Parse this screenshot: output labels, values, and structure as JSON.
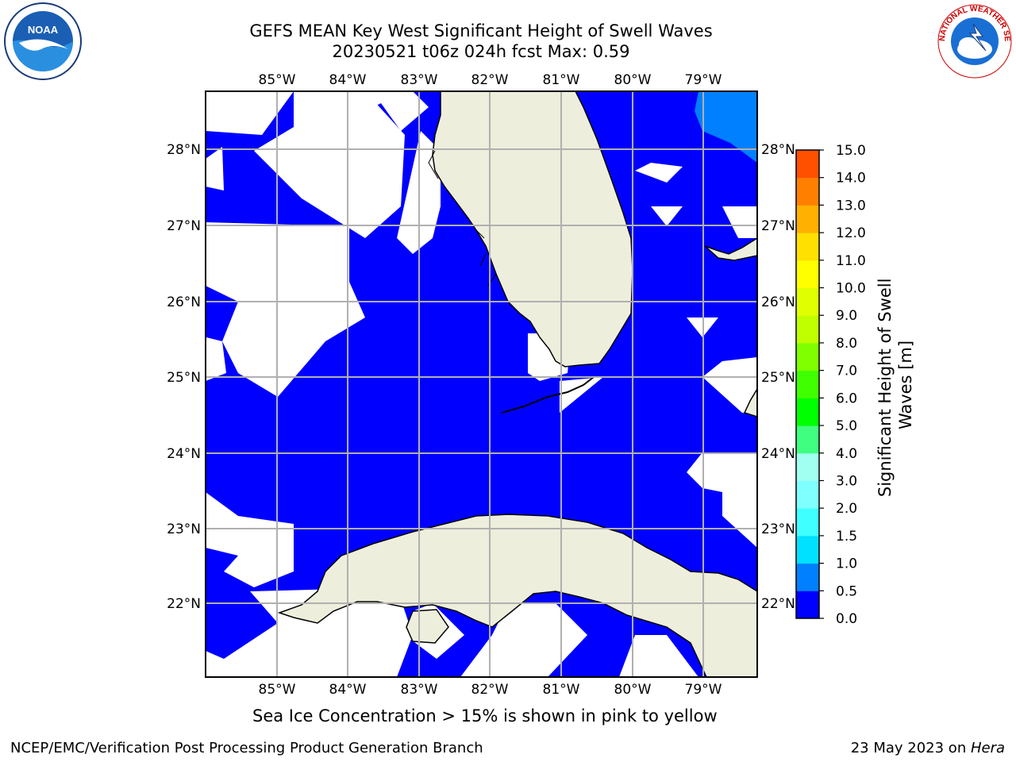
{
  "title_line1": "GEFS MEAN Key West Significant Height of Swell Waves",
  "title_line2": "20230521 t06z 024h fcst   Max: 0.59",
  "map": {
    "lon_labels": [
      "85°W",
      "84°W",
      "83°W",
      "82°W",
      "81°W",
      "80°W",
      "79°W"
    ],
    "lat_labels": [
      "28°N",
      "27°N",
      "26°N",
      "25°N",
      "24°N",
      "23°N",
      "22°N"
    ],
    "lon_range": [
      -86.0,
      -78.3
    ],
    "lat_range": [
      21.0,
      28.8
    ],
    "ocean_color": "#0000ff",
    "land_color": "#eeeedd",
    "grid_color": "#b0b0b0"
  },
  "colorbar": {
    "label": "Significant Height of Swell Waves [m]",
    "ticks": [
      "0.0",
      "0.5",
      "1.0",
      "1.5",
      "2.0",
      "3.0",
      "4.0",
      "5.0",
      "6.0",
      "7.0",
      "8.0",
      "9.0",
      "10.0",
      "11.0",
      "12.0",
      "13.0",
      "14.0",
      "15.0"
    ],
    "colors": [
      "#0000ff",
      "#0080ff",
      "#00e0ff",
      "#40ffff",
      "#80ffff",
      "#a0fff0",
      "#40ff80",
      "#00ff00",
      "#40ff00",
      "#80ff00",
      "#c0ff00",
      "#e0ff00",
      "#ffff00",
      "#ffe000",
      "#ffb000",
      "#ff8000",
      "#ff5000",
      "#ff2000",
      "#ff0000"
    ]
  },
  "ice_note": "Sea Ice Concentration > 15% is shown in pink to yellow",
  "footer_left": "NCEP/EMC/Verification Post Processing Product Generation Branch",
  "footer_date": "23 May 2023 on ",
  "footer_machine": "Hera",
  "logos": {
    "noaa_text": "NOAA",
    "nws_text": "NATIONAL WEATHER SERVICE"
  }
}
